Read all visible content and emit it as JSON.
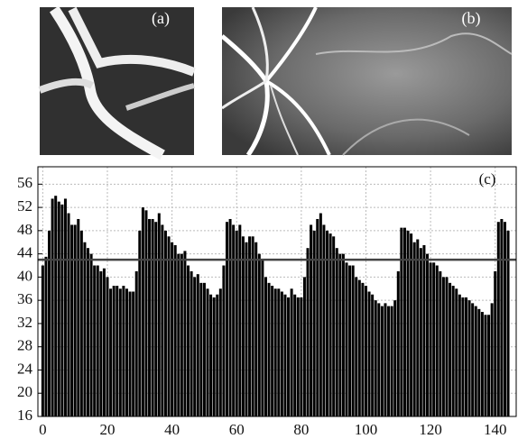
{
  "images": [
    {
      "label": "(a)"
    },
    {
      "label": "(b)"
    }
  ],
  "chart_data": {
    "type": "bar",
    "panel_label": "(c)",
    "x": [
      0,
      1,
      2,
      3,
      4,
      5,
      6,
      7,
      8,
      9,
      10,
      11,
      12,
      13,
      14,
      15,
      16,
      17,
      18,
      19,
      20,
      21,
      22,
      23,
      24,
      25,
      26,
      27,
      28,
      29,
      30,
      31,
      32,
      33,
      34,
      35,
      36,
      37,
      38,
      39,
      40,
      41,
      42,
      43,
      44,
      45,
      46,
      47,
      48,
      49,
      50,
      51,
      52,
      53,
      54,
      55,
      56,
      57,
      58,
      59,
      60,
      61,
      62,
      63,
      64,
      65,
      66,
      67,
      68,
      69,
      70,
      71,
      72,
      73,
      74,
      75,
      76,
      77,
      78,
      79,
      80,
      81,
      82,
      83,
      84,
      85,
      86,
      87,
      88,
      89,
      90,
      91,
      92,
      93,
      94,
      95,
      96,
      97,
      98,
      99,
      100,
      101,
      102,
      103,
      104,
      105,
      106,
      107,
      108,
      109,
      110,
      111,
      112,
      113,
      114,
      115,
      116,
      117,
      118,
      119,
      120,
      121,
      122,
      123,
      124,
      125,
      126,
      127,
      128,
      129,
      130,
      131,
      132,
      133,
      134,
      135,
      136,
      137,
      138,
      139,
      140,
      141,
      142,
      143,
      144
    ],
    "values": [
      42,
      43.5,
      48,
      53.5,
      54,
      53,
      52.5,
      53.5,
      51,
      49,
      49,
      50,
      48,
      46,
      45,
      44,
      42,
      42,
      41,
      41.5,
      40,
      38,
      38.5,
      38.5,
      38,
      38.5,
      38,
      37.5,
      37.5,
      41,
      48,
      52,
      51.5,
      50,
      50,
      49.5,
      51,
      49,
      48,
      47,
      46,
      45.5,
      44,
      44,
      44.5,
      42,
      41,
      40,
      40.5,
      39,
      39,
      38,
      37,
      36.5,
      37,
      38,
      42,
      49.5,
      50,
      49,
      48,
      49,
      47,
      46,
      47,
      47,
      46,
      44,
      43,
      40,
      39,
      38.5,
      38,
      38,
      37.5,
      37,
      36.5,
      38,
      37,
      36.5,
      36.5,
      40,
      45,
      49,
      48,
      50,
      51,
      49,
      48,
      47.5,
      47,
      45,
      44,
      44,
      42.5,
      42,
      42,
      40,
      39.5,
      39,
      38.5,
      37.5,
      37,
      36,
      35.5,
      35,
      35.5,
      35,
      35,
      36,
      41,
      48.5,
      48.5,
      48,
      47.5,
      46,
      46.5,
      45,
      45.5,
      44,
      42.5,
      42.5,
      42,
      41,
      40,
      40,
      39,
      38.5,
      38,
      37,
      36.5,
      36.5,
      36,
      35.5,
      35,
      34.5,
      34,
      33.5,
      33.5,
      35.5,
      41,
      49.5,
      50,
      49.5,
      48
    ],
    "color": "#000000",
    "reference_line": 43,
    "xlim": [
      -1.5,
      146.5
    ],
    "xticks": [
      0,
      20,
      40,
      60,
      80,
      100,
      120,
      140
    ],
    "ylim": [
      16,
      59
    ],
    "yticks": [
      16,
      20,
      24,
      28,
      32,
      36,
      40,
      44,
      48,
      52,
      56
    ],
    "grid": true
  }
}
